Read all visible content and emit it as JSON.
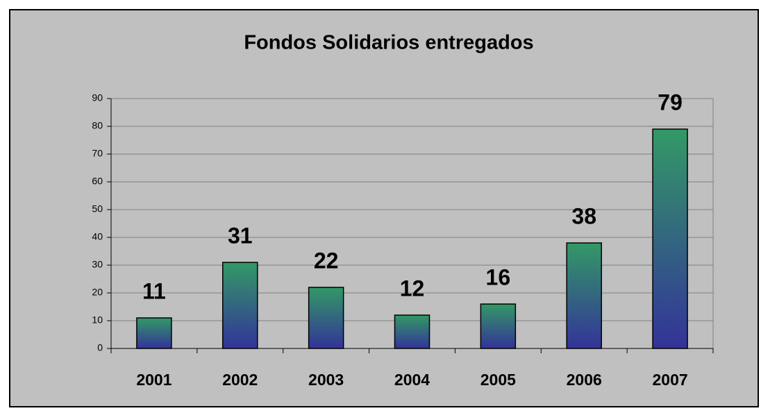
{
  "chart_data": {
    "type": "bar",
    "title": "Fondos Solidarios entregados",
    "categories": [
      "2001",
      "2002",
      "2003",
      "2004",
      "2005",
      "2006",
      "2007"
    ],
    "values": [
      11,
      31,
      22,
      12,
      16,
      38,
      79
    ],
    "gradient": [
      "#339966",
      "#333399"
    ],
    "ylim": [
      0,
      90
    ],
    "yticks": [
      0,
      10,
      20,
      30,
      40,
      50,
      60,
      70,
      80,
      90
    ],
    "grid": true
  }
}
